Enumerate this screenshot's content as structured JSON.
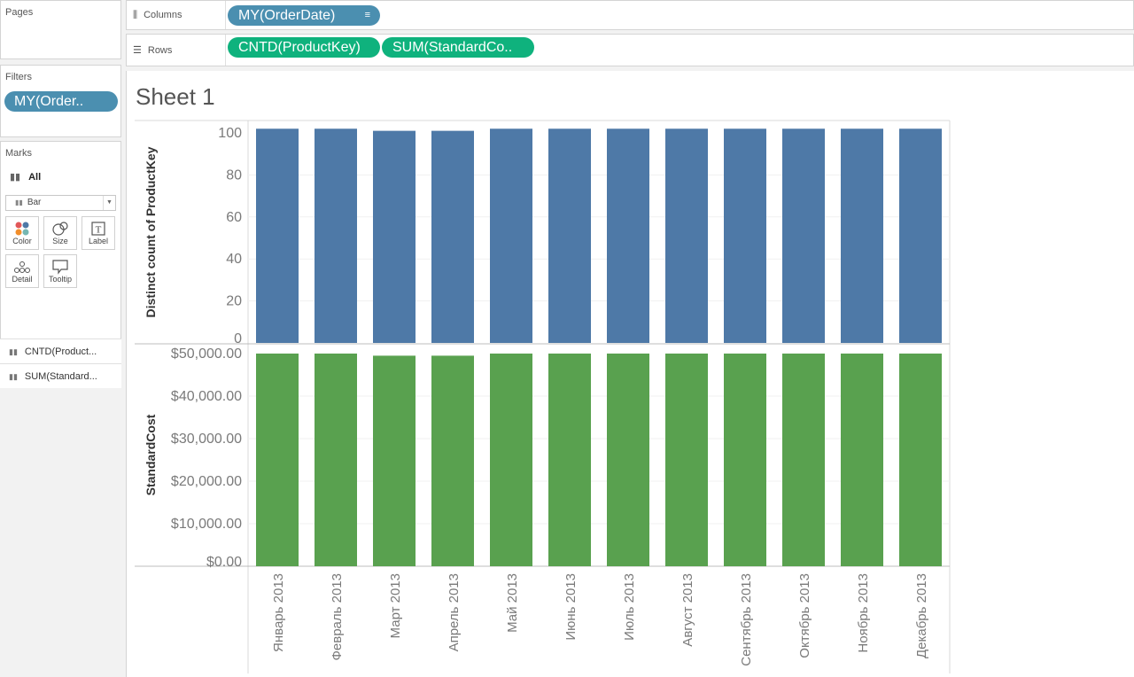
{
  "left_panel": {
    "pages": {
      "title": "Pages"
    },
    "filters": {
      "title": "Filters",
      "pill": "MY(Order.."
    },
    "marks": {
      "title": "Marks",
      "all_label": "All",
      "mark_type": "Bar",
      "buttons": [
        {
          "label": "Color",
          "icon": "color-icon"
        },
        {
          "label": "Size",
          "icon": "size-icon"
        },
        {
          "label": "Label",
          "icon": "label-icon"
        },
        {
          "label": "Detail",
          "icon": "detail-icon"
        },
        {
          "label": "Tooltip",
          "icon": "tooltip-icon"
        }
      ],
      "fields": [
        "CNTD(Product...",
        "SUM(Standard..."
      ]
    }
  },
  "shelves": {
    "columns": {
      "label": "Columns",
      "pills": [
        "MY(OrderDate)"
      ]
    },
    "rows": {
      "label": "Rows",
      "pills": [
        "CNTD(ProductKey)",
        "SUM(StandardCo.."
      ]
    }
  },
  "sheet": {
    "title": "Sheet 1"
  },
  "colors": {
    "pill_blue": "#4b8fb0",
    "pill_green": "#0fb27d",
    "bar_top": "#4e79a7",
    "bar_bottom": "#59a14f"
  },
  "chart_data": [
    {
      "type": "bar",
      "ylabel": "Distinct count of ProductKey",
      "ylim": [
        0,
        100
      ],
      "yticks": [
        "100",
        "80",
        "60",
        "40",
        "20",
        "0"
      ],
      "categories": [
        "Январь 2013",
        "Февраль 2013",
        "Март 2013",
        "Апрель 2013",
        "Май 2013",
        "Июнь 2013",
        "Июль 2013",
        "Август 2013",
        "Сентябрь 2013",
        "Октябрь 2013",
        "Ноябрь 2013",
        "Декабрь 2013"
      ],
      "values": [
        102,
        102,
        101,
        101,
        102,
        102,
        102,
        102,
        102,
        102,
        102,
        102
      ]
    },
    {
      "type": "bar",
      "ylabel": "StandardCost",
      "ylim": [
        0,
        50000
      ],
      "yticks": [
        "$50,000.00",
        "$40,000.00",
        "$30,000.00",
        "$20,000.00",
        "$10,000.00",
        "$0.00"
      ],
      "categories": [
        "Январь 2013",
        "Февраль 2013",
        "Март 2013",
        "Апрель 2013",
        "Май 2013",
        "Июнь 2013",
        "Июль 2013",
        "Август 2013",
        "Сентябрь 2013",
        "Октябрь 2013",
        "Ноябрь 2013",
        "Декабрь 2013"
      ],
      "values": [
        50000,
        50000,
        49500,
        49500,
        50000,
        50000,
        50000,
        50000,
        50000,
        50000,
        50000,
        50000
      ]
    }
  ]
}
